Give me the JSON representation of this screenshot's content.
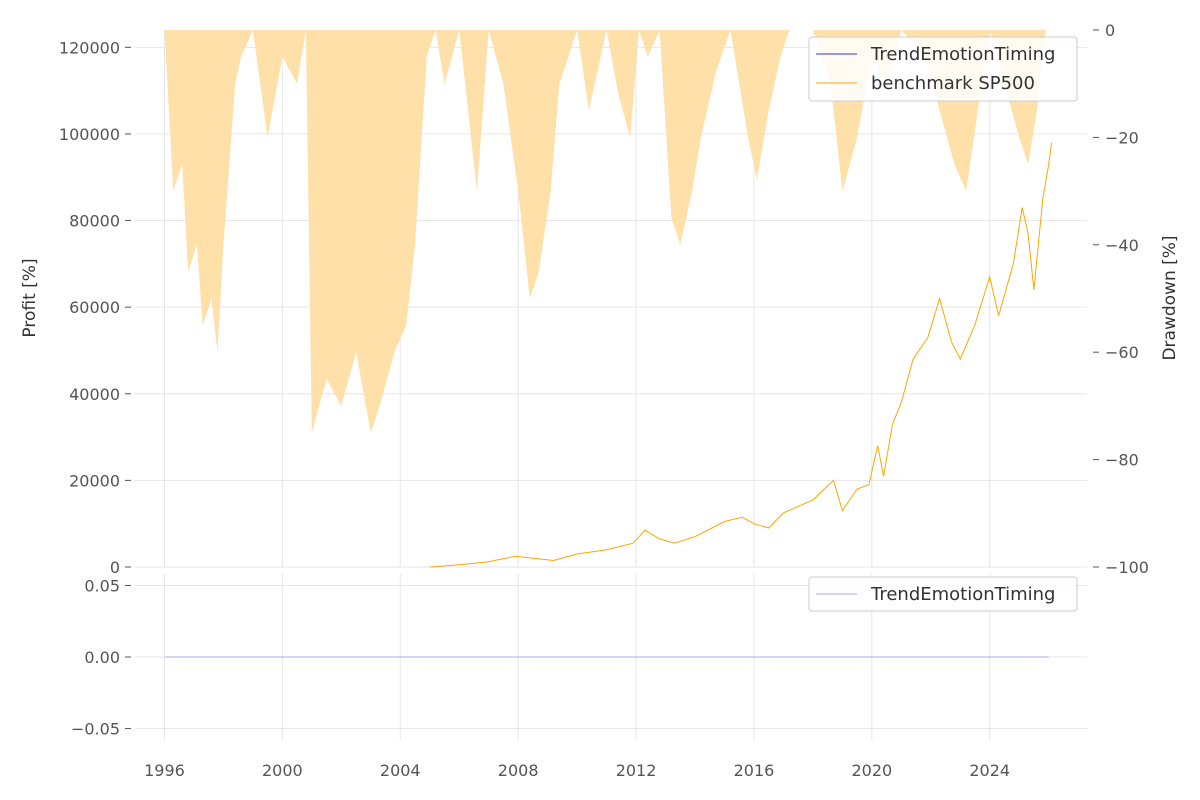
{
  "chart_data": [
    {
      "type": "line",
      "panel": "top",
      "ylabel": "Profit [%]",
      "y2label": "Drawdown [%]",
      "ylim": [
        0,
        124000
      ],
      "y2lim": [
        -100,
        0
      ],
      "xlim": [
        1995.0,
        2027.3
      ],
      "yticks": [
        0,
        20000,
        40000,
        60000,
        80000,
        100000,
        120000
      ],
      "y2ticks": [
        0,
        -20,
        -40,
        -60,
        -80,
        -100
      ],
      "y2ticklabels": [
        "0",
        "−20",
        "−40",
        "−60",
        "−80",
        "−100"
      ],
      "xticks": [
        1996,
        2000,
        2004,
        2008,
        2012,
        2016,
        2020,
        2024
      ],
      "grid": true,
      "legend_position": "top-right",
      "series": [
        {
          "name": "TrendEmotionTiming",
          "color": "#3333cc",
          "values": []
        },
        {
          "name": "benchmark SP500",
          "color": "#ffa500",
          "x": [
            2005.0,
            2006.0,
            2007.0,
            2007.9,
            2008.5,
            2009.2,
            2010.0,
            2011.0,
            2011.9,
            2012.3,
            2012.8,
            2013.3,
            2014.0,
            2015.0,
            2015.6,
            2016.0,
            2016.5,
            2017.0,
            2018.0,
            2018.7,
            2019.0,
            2019.5,
            2019.9,
            2020.2,
            2020.4,
            2020.7,
            2021.0,
            2021.4,
            2021.9,
            2022.3,
            2022.7,
            2023.0,
            2023.5,
            2024.0,
            2024.3,
            2024.8,
            2025.1,
            2025.3,
            2025.5,
            2025.8,
            2026.0,
            2026.1
          ],
          "y": [
            0,
            500,
            1200,
            2500,
            2000,
            1500,
            3000,
            4000,
            5500,
            8500,
            6500,
            5500,
            7000,
            10500,
            11500,
            10000,
            9000,
            12500,
            15500,
            20000,
            13000,
            18000,
            19000,
            28000,
            21000,
            33000,
            38000,
            48000,
            53000,
            62000,
            52000,
            48000,
            56000,
            67000,
            58000,
            70000,
            83000,
            77000,
            64000,
            85000,
            93000,
            98000
          ]
        }
      ],
      "drawdown": {
        "color": "#ffe0a8",
        "x": [
          1996.0,
          1996.3,
          1996.6,
          1996.8,
          1997.1,
          1997.3,
          1997.6,
          1997.8,
          1998.0,
          1998.2,
          1998.4,
          1998.6,
          1999.0,
          1999.5,
          2000.0,
          2000.5,
          2000.8,
          2001.0,
          2001.5,
          2002.0,
          2002.5,
          2003.0,
          2003.3,
          2003.8,
          2004.2,
          2004.5,
          2004.9,
          2005.2,
          2005.5,
          2006.0,
          2006.3,
          2006.6,
          2007.0,
          2007.5,
          2008.0,
          2008.4,
          2008.7,
          2009.1,
          2009.4,
          2010.0,
          2010.4,
          2011.0,
          2011.4,
          2011.8,
          2012.1,
          2012.4,
          2012.8,
          2013.2,
          2013.5,
          2013.9,
          2014.2,
          2014.7,
          2015.2,
          2015.8,
          2016.1,
          2016.5,
          2016.9,
          2017.2,
          2018.0,
          2018.6,
          2019.0,
          2019.5,
          2020.0,
          2020.5,
          2021.0,
          2021.8,
          2022.3,
          2022.8,
          2023.2,
          2023.6,
          2024.0,
          2024.5,
          2025.0,
          2025.3,
          2025.6,
          2025.9,
          2026.1
        ],
        "y": [
          0,
          -30,
          -25,
          -45,
          -40,
          -55,
          -50,
          -60,
          -40,
          -25,
          -10,
          -5,
          0,
          -20,
          -5,
          -10,
          0,
          -75,
          -65,
          -70,
          -60,
          -75,
          -70,
          -60,
          -55,
          -40,
          -5,
          0,
          -10,
          0,
          -15,
          -30,
          0,
          -10,
          -30,
          -50,
          -45,
          -30,
          -10,
          0,
          -15,
          0,
          -12,
          -20,
          0,
          -5,
          0,
          -35,
          -40,
          -30,
          -20,
          -8,
          0,
          -20,
          -28,
          -15,
          -5,
          0,
          0,
          -10,
          -30,
          -20,
          -5,
          -10,
          0,
          -5,
          -15,
          -25,
          -30,
          -15,
          0,
          -10,
          -20,
          -25,
          -15,
          0,
          0
        ]
      }
    },
    {
      "type": "line",
      "panel": "bottom",
      "ylim": [
        -0.058,
        0.058
      ],
      "yticks": [
        -0.05,
        0,
        0.05
      ],
      "yticklabels": [
        "−0.05",
        "0.00",
        "0.05"
      ],
      "xticks": [
        1996,
        2000,
        2004,
        2008,
        2012,
        2016,
        2020,
        2024
      ],
      "grid": true,
      "legend_position": "top-right",
      "series": [
        {
          "name": "TrendEmotionTiming",
          "color": "#aaaaee",
          "x": [
            1996.0,
            2026.0
          ],
          "y": [
            0,
            0
          ]
        }
      ]
    }
  ]
}
